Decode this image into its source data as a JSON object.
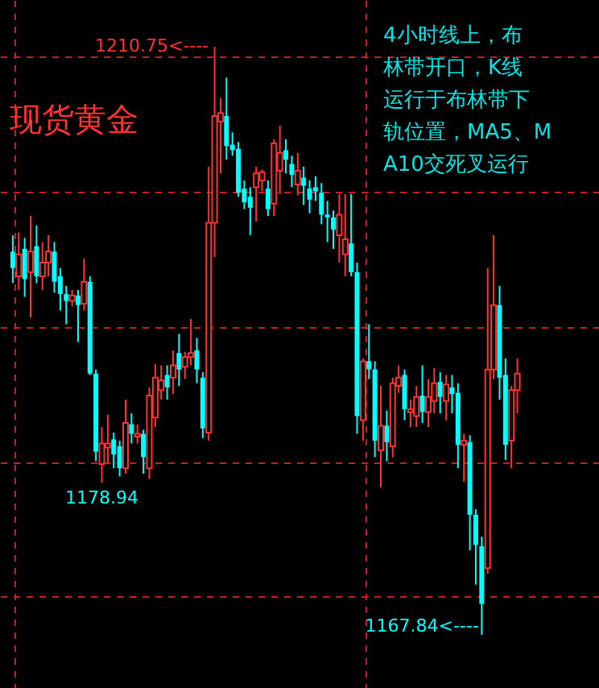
{
  "chart_data": {
    "type": "candlestick",
    "title": "现货黄金",
    "grid": true,
    "categories": [
      null,
      null,
      null,
      null,
      null,
      null,
      null,
      null,
      null,
      null,
      null,
      null,
      null,
      null,
      null,
      null,
      null,
      null,
      null,
      null,
      null,
      null,
      null,
      null,
      null,
      null,
      null,
      null,
      null,
      null,
      null,
      null,
      null,
      null,
      null,
      null,
      null,
      null,
      null,
      null,
      null,
      null,
      null,
      null,
      null,
      null,
      null,
      null,
      null,
      null,
      null,
      null,
      null,
      null,
      null,
      null,
      null,
      null,
      null,
      null,
      null,
      null,
      null,
      null,
      null,
      null,
      null,
      null,
      null,
      null,
      null,
      null,
      null,
      null,
      null,
      null,
      null,
      null,
      null,
      null,
      null,
      null,
      null,
      null,
      null,
      null
    ],
    "ohlc": [
      [
        1195.8,
        1197.0,
        1193.5,
        1194.6
      ],
      [
        1194.0,
        1197.2,
        1193.0,
        1195.6
      ],
      [
        1196.0,
        1196.8,
        1192.5,
        1193.8
      ],
      [
        1194.3,
        1198.4,
        1191.0,
        1195.8
      ],
      [
        1196.2,
        1197.7,
        1193.5,
        1194.0
      ],
      [
        1194.0,
        1196.5,
        1193.0,
        1195.0
      ],
      [
        1195.0,
        1197.0,
        1194.0,
        1195.8
      ],
      [
        1195.8,
        1196.5,
        1192.8,
        1193.6
      ],
      [
        1194.0,
        1194.6,
        1191.5,
        1192.7
      ],
      [
        1192.7,
        1193.3,
        1190.5,
        1192.2
      ],
      [
        1192.2,
        1193.0,
        1191.8,
        1192.6
      ],
      [
        1192.6,
        1193.0,
        1189.2,
        1191.9
      ],
      [
        1192.0,
        1195.3,
        1191.5,
        1193.6
      ],
      [
        1193.6,
        1194.0,
        1186.8,
        1186.9
      ],
      [
        1186.9,
        1187.2,
        1180.5,
        1181.2
      ],
      [
        1180.3,
        1183.0,
        1178.94,
        1181.8
      ],
      [
        1181.5,
        1183.9,
        1180.4,
        1181.8
      ],
      [
        1182.1,
        1182.6,
        1180.0,
        1181.0
      ],
      [
        1181.6,
        1182.0,
        1179.4,
        1180.0
      ],
      [
        1180.0,
        1185.0,
        1179.6,
        1183.3
      ],
      [
        1183.2,
        1184.0,
        1181.8,
        1182.5
      ],
      [
        1182.3,
        1183.2,
        1181.8,
        1182.5
      ],
      [
        1182.5,
        1182.8,
        1179.6,
        1180.8
      ],
      [
        1180.0,
        1185.9,
        1179.2,
        1185.3
      ],
      [
        1183.7,
        1187.6,
        1183.0,
        1186.6
      ],
      [
        1185.7,
        1187.5,
        1185.0,
        1186.4
      ],
      [
        1186.8,
        1187.5,
        1185.0,
        1185.9
      ],
      [
        1186.6,
        1188.6,
        1185.4,
        1187.5
      ],
      [
        1188.4,
        1189.8,
        1186.0,
        1187.2
      ],
      [
        1187.4,
        1188.5,
        1186.5,
        1188.1
      ],
      [
        1188.1,
        1190.9,
        1187.5,
        1188.4
      ],
      [
        1188.6,
        1189.5,
        1186.2,
        1187.2
      ],
      [
        1186.6,
        1187.0,
        1182.2,
        1182.9
      ],
      [
        1182.6,
        1202.0,
        1182.0,
        1197.9
      ],
      [
        1197.9,
        1210.75,
        1195.4,
        1205.7
      ],
      [
        1205.3,
        1207.0,
        1201.5,
        1205.9
      ],
      [
        1205.7,
        1208.5,
        1202.5,
        1203.5
      ],
      [
        1203.6,
        1204.5,
        1202.8,
        1203.2
      ],
      [
        1203.3,
        1203.8,
        1199.8,
        1200.1
      ],
      [
        1200.4,
        1201.0,
        1198.9,
        1199.4
      ],
      [
        1199.8,
        1200.5,
        1197.0,
        1199.0
      ],
      [
        1200.5,
        1202.0,
        1198.0,
        1201.5
      ],
      [
        1201.0,
        1201.8,
        1200.2,
        1201.6
      ],
      [
        1200.4,
        1201.0,
        1198.4,
        1198.9
      ],
      [
        1199.3,
        1204.0,
        1198.4,
        1203.7
      ],
      [
        1201.7,
        1205.0,
        1200.0,
        1203.0
      ],
      [
        1203.2,
        1204.0,
        1201.5,
        1202.5
      ],
      [
        1202.2,
        1202.8,
        1200.5,
        1201.4
      ],
      [
        1200.7,
        1203.0,
        1199.9,
        1201.7
      ],
      [
        1201.2,
        1202.0,
        1199.2,
        1200.6
      ],
      [
        1200.4,
        1201.0,
        1198.6,
        1199.6
      ],
      [
        1200.5,
        1201.3,
        1199.5,
        1200.2
      ],
      [
        1200.1,
        1200.8,
        1197.8,
        1198.5
      ],
      [
        1198.5,
        1199.5,
        1196.5,
        1198.3
      ],
      [
        1198.3,
        1198.8,
        1196.0,
        1197.4
      ],
      [
        1197.0,
        1200.0,
        1195.0,
        1198.5
      ],
      [
        1195.6,
        1200.0,
        1194.0,
        1196.7
      ],
      [
        1196.4,
        1200.0,
        1194.0,
        1194.3
      ],
      [
        1194.3,
        1195.0,
        1182.5,
        1183.8
      ],
      [
        1183.5,
        1188.0,
        1182.0,
        1187.8
      ],
      [
        1187.8,
        1190.5,
        1186.5,
        1187.2
      ],
      [
        1187.2,
        1187.8,
        1180.8,
        1182.0
      ],
      [
        1181.3,
        1186.0,
        1178.6,
        1183.1
      ],
      [
        1183.1,
        1184.2,
        1180.5,
        1181.9
      ],
      [
        1181.6,
        1186.6,
        1180.8,
        1186.2
      ],
      [
        1186.0,
        1187.5,
        1185.5,
        1186.6
      ],
      [
        1186.8,
        1187.2,
        1183.5,
        1184.3
      ],
      [
        1184.1,
        1185.0,
        1183.0,
        1184.3
      ],
      [
        1183.8,
        1186.0,
        1183.0,
        1185.2
      ],
      [
        1185.3,
        1187.5,
        1183.3,
        1184.1
      ],
      [
        1184.1,
        1186.5,
        1183.0,
        1185.2
      ],
      [
        1184.9,
        1187.3,
        1184.0,
        1186.2
      ],
      [
        1186.3,
        1187.0,
        1184.0,
        1185.2
      ],
      [
        1184.9,
        1186.8,
        1183.5,
        1186.1
      ],
      [
        1185.9,
        1186.8,
        1184.0,
        1185.4
      ],
      [
        1185.5,
        1186.2,
        1180.0,
        1181.7
      ],
      [
        1181.7,
        1182.5,
        1179.0,
        1182.0
      ],
      [
        1181.9,
        1182.4,
        1174.0,
        1176.6
      ],
      [
        1176.6,
        1177.0,
        1171.5,
        1174.4
      ],
      [
        1174.3,
        1175.0,
        1167.84,
        1170.1
      ],
      [
        1172.7,
        1194.6,
        1172.3,
        1187.2
      ],
      [
        1187.2,
        1197.0,
        1186.5,
        1191.9
      ],
      [
        1191.9,
        1193.3,
        1185.0,
        1186.6
      ],
      [
        1186.8,
        1188.0,
        1180.6,
        1181.7
      ],
      [
        1182.0,
        1186.0,
        1180.0,
        1185.7
      ],
      [
        1185.7,
        1188.0,
        1184.0,
        1186.9
      ]
    ],
    "colors": [
      "#00ffff",
      "#ff3232",
      "#00ffff",
      "#ff3232",
      "#00ffff",
      "#ff3232",
      "#ff3232",
      "#00ffff",
      "#00ffff",
      "#00ffff",
      "#ff3232",
      "#00ffff",
      "#ff3232",
      "#00ffff",
      "#00ffff",
      "#ff3232",
      "#ff3232",
      "#00ffff",
      "#00ffff",
      "#ff3232",
      "#00ffff",
      "#ff3232",
      "#00ffff",
      "#ff3232",
      "#ff3232",
      "#ff3232",
      "#00ffff",
      "#ff3232",
      "#00ffff",
      "#ff3232",
      "#ff3232",
      "#00ffff",
      "#00ffff",
      "#ff3232",
      "#ff3232",
      "#ff3232",
      "#00ffff",
      "#00ffff",
      "#00ffff",
      "#00ffff",
      "#00ffff",
      "#ff3232",
      "#ff3232",
      "#00ffff",
      "#ff3232",
      "#ff3232",
      "#00ffff",
      "#00ffff",
      "#ff3232",
      "#00ffff",
      "#00ffff",
      "#00ffff",
      "#00ffff",
      "#00ffff",
      "#00ffff",
      "#ff3232",
      "#ff3232",
      "#00ffff",
      "#00ffff",
      "#ff3232",
      "#00ffff",
      "#00ffff",
      "#ff3232",
      "#00ffff",
      "#ff3232",
      "#ff3232",
      "#00ffff",
      "#ff3232",
      "#ff3232",
      "#00ffff",
      "#ff3232",
      "#ff3232",
      "#00ffff",
      "#ff3232",
      "#00ffff",
      "#00ffff",
      "#ff3232",
      "#00ffff",
      "#00ffff",
      "#00ffff",
      "#ff3232",
      "#ff3232",
      "#00ffff",
      "#00ffff",
      "#ff3232",
      "#ff3232"
    ],
    "annotations": [
      "1210.75<----",
      {
        "text": "1178.94",
        "y": 1178.94
      },
      "1167.84<----",
      "4小时线上，布林带开口，K线运行于布林带下轨位置，MA5、MA10交死叉运行"
    ]
  }
}
